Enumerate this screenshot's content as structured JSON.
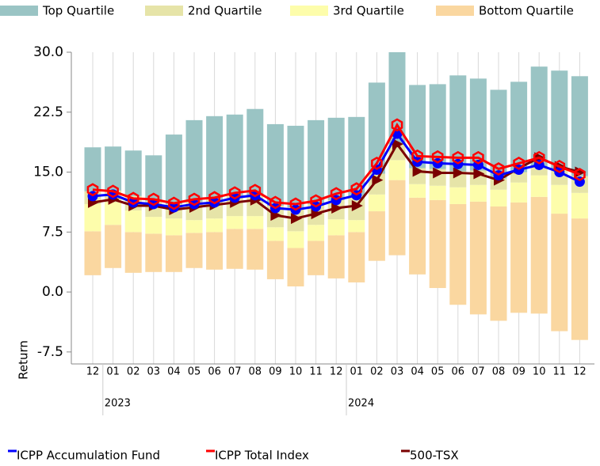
{
  "chart_data": {
    "type": "bar",
    "y_label": "Return",
    "categories": [
      "12",
      "01",
      "02",
      "03",
      "04",
      "05",
      "06",
      "07",
      "08",
      "09",
      "10",
      "11",
      "12",
      "01",
      "02",
      "03",
      "04",
      "05",
      "06",
      "07",
      "08",
      "09",
      "10",
      "11",
      "12"
    ],
    "year_labels": [
      {
        "category": 1,
        "label": "2023"
      },
      {
        "category": 13,
        "label": "2024"
      }
    ],
    "ylim": [
      -9,
      30
    ],
    "yticks": [
      {
        "value": -7.5,
        "label": "-7.5"
      },
      {
        "value": 0,
        "label": "0.0"
      },
      {
        "value": 7.5,
        "label": "7.5"
      },
      {
        "value": 15,
        "label": "15.0"
      },
      {
        "value": 22.5,
        "label": "22.5"
      },
      {
        "value": 30,
        "label": "30.0"
      }
    ],
    "low": [
      2.1,
      3.0,
      2.4,
      2.5,
      2.5,
      3.0,
      2.8,
      2.9,
      2.8,
      1.6,
      0.7,
      2.1,
      1.7,
      1.2,
      3.9,
      4.6,
      2.2,
      0.5,
      -1.6,
      -2.8,
      -3.6,
      -2.6,
      -2.7,
      -4.9,
      -6.0
    ],
    "series": [
      {
        "name": "Top Quartile",
        "kind": "bar",
        "color": "#9ac4c4",
        "values": [
          5.5,
          5.5,
          5.7,
          5.7,
          8.7,
          10.2,
          10.4,
          10.1,
          10.8,
          10.2,
          10.2,
          10.5,
          10.3,
          9.9,
          11.4,
          11.5,
          10.4,
          10.6,
          12.0,
          11.5,
          11.1,
          11.3,
          12.5,
          12.4,
          12.5
        ]
      },
      {
        "name": "2nd Quartile",
        "kind": "bar",
        "color": "#e6e4a8",
        "values": [
          1.6,
          1.5,
          1.8,
          2.0,
          1.8,
          2.3,
          2.4,
          2.6,
          2.6,
          2.7,
          3.0,
          2.6,
          2.4,
          3.0,
          2.6,
          2.0,
          2.0,
          2.1,
          2.0,
          1.8,
          1.4,
          1.3,
          1.1,
          1.9,
          2.1
        ]
      },
      {
        "name": "3rd Quartile",
        "kind": "bar",
        "color": "#fdfdab",
        "values": [
          3.4,
          2.8,
          2.7,
          2.1,
          2.1,
          1.6,
          1.7,
          1.6,
          1.6,
          1.7,
          2.1,
          2.0,
          2.0,
          1.5,
          2.1,
          2.5,
          1.7,
          1.8,
          2.1,
          2.1,
          2.1,
          2.5,
          2.7,
          3.6,
          3.2
        ]
      },
      {
        "name": "Bottom Quartile",
        "kind": "bar",
        "color": "#fad7a0",
        "values": [
          5.5,
          5.4,
          5.1,
          4.8,
          4.6,
          4.4,
          4.7,
          5.0,
          5.1,
          4.8,
          4.8,
          4.3,
          5.4,
          6.3,
          6.2,
          9.4,
          9.6,
          11.0,
          12.6,
          14.1,
          14.3,
          13.8,
          14.6,
          14.7,
          15.2
        ]
      },
      {
        "name": "ICPP Accumulation Fund",
        "kind": "line",
        "marker": "circle",
        "color": "#0000ff",
        "values": [
          12.0,
          12.2,
          11.2,
          11.0,
          10.6,
          11.0,
          11.2,
          11.8,
          12.1,
          10.5,
          10.3,
          10.7,
          11.5,
          12.1,
          15.3,
          19.8,
          16.3,
          16.1,
          16.0,
          15.9,
          14.6,
          15.3,
          15.9,
          15.0,
          13.8
        ]
      },
      {
        "name": "ICPP Total Index",
        "kind": "line",
        "marker": "hexagon",
        "color": "#ff0000",
        "values": [
          12.8,
          12.6,
          11.7,
          11.6,
          11.1,
          11.6,
          11.8,
          12.4,
          12.7,
          11.2,
          11.0,
          11.4,
          12.3,
          12.9,
          16.1,
          20.9,
          17.0,
          16.9,
          16.8,
          16.8,
          15.4,
          16.1,
          16.8,
          15.7,
          14.7
        ]
      },
      {
        "name": "500-TSX",
        "kind": "line",
        "marker": "triangle",
        "color": "#7a0000",
        "values": [
          11.2,
          11.6,
          10.8,
          10.8,
          10.3,
          10.6,
          10.9,
          11.2,
          11.5,
          9.6,
          9.2,
          9.8,
          10.5,
          10.8,
          14.0,
          18.5,
          15.1,
          14.9,
          14.9,
          14.8,
          14.0,
          15.5,
          16.8,
          15.7,
          15.0
        ]
      }
    ]
  }
}
